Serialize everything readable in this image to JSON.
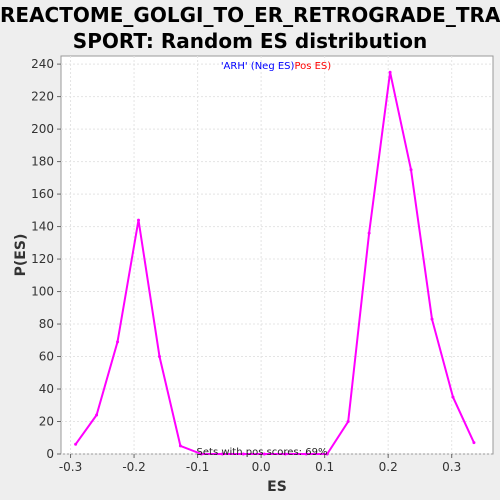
{
  "chart_data": {
    "type": "line",
    "title_line1": "REACTOME_GOLGI_TO_ER_RETROGRADE_TRAN",
    "title_line2": "SPORT: Random ES distribution",
    "xlabel": "ES",
    "ylabel": "P(ES)",
    "xlim": [
      -0.315,
      0.365
    ],
    "ylim": [
      0,
      245
    ],
    "xticks": [
      "-0.3",
      "-0.2",
      "-0.1",
      "0.0",
      "0.1",
      "0.2",
      "0.3"
    ],
    "xtick_values": [
      -0.3,
      -0.2,
      -0.1,
      0.0,
      0.1,
      0.2,
      0.3
    ],
    "yticks": [
      "0",
      "20",
      "40",
      "60",
      "80",
      "100",
      "120",
      "140",
      "160",
      "180",
      "200",
      "220",
      "240"
    ],
    "ytick_values": [
      0,
      20,
      40,
      60,
      80,
      100,
      120,
      140,
      160,
      180,
      200,
      220,
      240
    ],
    "grid": true,
    "legend": {
      "placement": "top-center",
      "entries": [
        {
          "text": "'ARH' (Neg ES)",
          "color": "#0000ff"
        },
        {
          "text": "Pos ES)",
          "color": "#ff0000"
        }
      ]
    },
    "annotation": "Sets with pos scores: 69%",
    "series": [
      {
        "color": "#ff00ff",
        "x": [
          -0.292,
          -0.259,
          -0.226,
          -0.193,
          -0.16,
          -0.127,
          -0.094,
          -0.061,
          -0.028,
          0.005,
          0.038,
          0.071,
          0.104,
          0.137,
          0.17,
          0.203,
          0.236,
          0.269,
          0.302,
          0.335
        ],
        "y": [
          6,
          24,
          69,
          144,
          60,
          5,
          0,
          0,
          0,
          0,
          0,
          0,
          0,
          20,
          136,
          235,
          175,
          83,
          35,
          7
        ]
      }
    ]
  }
}
